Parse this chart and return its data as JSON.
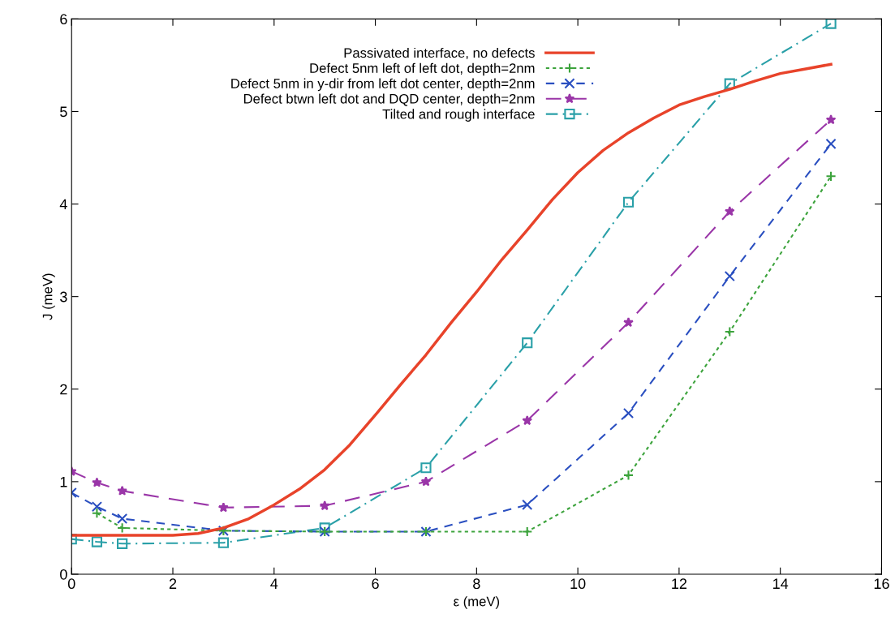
{
  "chart_data": {
    "type": "line",
    "xlabel": "ε (meV)",
    "ylabel": "J (meV)",
    "xlim": [
      0,
      16
    ],
    "xticks": [
      0,
      2,
      4,
      6,
      8,
      10,
      12,
      14,
      16
    ],
    "ylim": [
      0,
      6
    ],
    "yticks": [
      0,
      1,
      2,
      3,
      4,
      5,
      6
    ],
    "grid": false,
    "legend": "top",
    "series": [
      {
        "name": "Passivated interface, no defects",
        "color": "#e8432a",
        "line_style": "solid",
        "marker": "none",
        "x": [
          0,
          1,
          2,
          2.5,
          3,
          3.5,
          4,
          4.5,
          5,
          5.5,
          6,
          6.5,
          7,
          7.5,
          8,
          8.5,
          9,
          9.5,
          10,
          10.5,
          11,
          11.5,
          12,
          12.5,
          13,
          13.5,
          14,
          14.5,
          15
        ],
        "values": [
          0.42,
          0.42,
          0.42,
          0.44,
          0.5,
          0.6,
          0.75,
          0.92,
          1.13,
          1.4,
          1.72,
          2.05,
          2.37,
          2.72,
          3.05,
          3.4,
          3.72,
          4.05,
          4.34,
          4.58,
          4.77,
          4.93,
          5.07,
          5.16,
          5.24,
          5.33,
          5.41,
          5.46,
          5.51
        ]
      },
      {
        "name": "Defect 5nm left of left dot, depth=2nm",
        "color": "#3ca33c",
        "line_style": "dotted",
        "marker": "plus",
        "x": [
          0.5,
          1,
          3,
          5,
          7,
          9,
          11,
          13,
          15
        ],
        "values": [
          0.66,
          0.5,
          0.47,
          0.46,
          0.46,
          0.46,
          1.07,
          2.62,
          4.3
        ]
      },
      {
        "name": "Defect 5nm in y-dir from left dot center, depth=2nm",
        "color": "#2a4fc0",
        "line_style": "dashed",
        "marker": "cross",
        "x": [
          0,
          0.5,
          1,
          3,
          5,
          7,
          9,
          11,
          13,
          15
        ],
        "values": [
          0.88,
          0.73,
          0.6,
          0.47,
          0.46,
          0.46,
          0.75,
          1.74,
          3.22,
          4.65
        ]
      },
      {
        "name": "Defect btwn left dot and DQD center, depth=2nm",
        "color": "#9a36a8",
        "line_style": "longdash",
        "marker": "star",
        "x": [
          0,
          0.5,
          1,
          3,
          5,
          7,
          9,
          11,
          13,
          15
        ],
        "values": [
          1.11,
          0.99,
          0.9,
          0.72,
          0.74,
          1.0,
          1.66,
          2.72,
          3.92,
          4.91
        ]
      },
      {
        "name": "Tilted and rough interface",
        "color": "#2aa0a8",
        "line_style": "dashdot",
        "marker": "square",
        "x": [
          0,
          0.5,
          1,
          3,
          5,
          7,
          9,
          11,
          13,
          15
        ],
        "values": [
          0.38,
          0.35,
          0.33,
          0.34,
          0.5,
          1.15,
          2.5,
          4.02,
          5.3,
          5.95
        ]
      }
    ]
  }
}
